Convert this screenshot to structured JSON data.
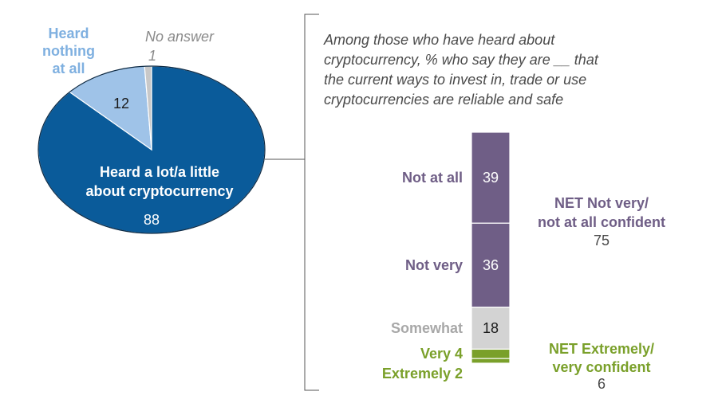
{
  "chart_data": [
    {
      "type": "pie",
      "slices": [
        {
          "label_lines": [
            "Heard a lot/a little",
            "about cryptocurrency"
          ],
          "value": 88,
          "display": "88"
        },
        {
          "label_lines": [
            "Heard",
            "nothing",
            "at all"
          ],
          "value": 12,
          "display": "12"
        },
        {
          "label_lines": [
            "No answer"
          ],
          "value": 1,
          "display": "1"
        }
      ]
    },
    {
      "type": "bar",
      "stacked": true,
      "title_lines": [
        "Among those who have heard about",
        "cryptocurrency, % who say they are __ that",
        "the current ways to invest in, trade or use",
        "cryptocurrencies are reliable and safe"
      ],
      "segments": [
        {
          "label": "Not at all",
          "value": 39,
          "display": "39"
        },
        {
          "label": "Not very",
          "value": 36,
          "display": "36"
        },
        {
          "label": "Somewhat",
          "value": 18,
          "display": "18"
        },
        {
          "label": "Very",
          "value": 4,
          "display": "4"
        },
        {
          "label": "Extremely",
          "value": 2,
          "display": "2"
        }
      ],
      "nets": [
        {
          "label_lines": [
            "NET Not very/",
            "not at all confident"
          ],
          "value": 75,
          "display": "75"
        },
        {
          "label_lines": [
            "NET Extremely/",
            "very confident"
          ],
          "value": 6,
          "display": "6"
        }
      ]
    }
  ],
  "colors": {
    "pie_main": "#0a5b9a",
    "pie_nothing": "#9fc3e8",
    "pie_noanswer": "#c8c8c8",
    "pie_nothing_text": "#7fb0e0",
    "no_answer_text": "#8a8a8a",
    "not_confident": "#6f5e86",
    "somewhat_fill": "#d3d3d3",
    "somewhat_text": "#a8a8a8",
    "confident": "#7aa02a",
    "title_text": "#4a4a4a",
    "dark_text": "#1a1a1a",
    "bracket": "#555555"
  }
}
